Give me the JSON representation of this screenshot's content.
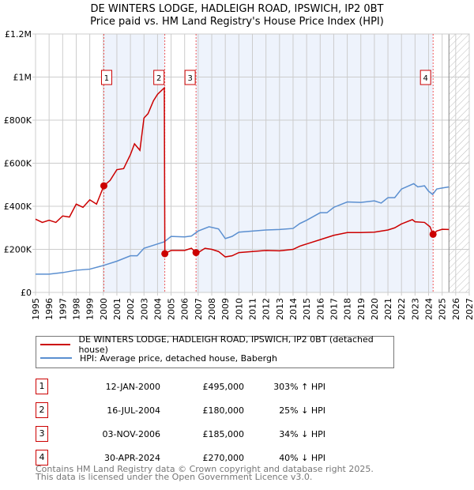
{
  "title": "DE WINTERS LODGE, HADLEIGH ROAD, IPSWICH, IP2 0BT",
  "subtitle": "Price paid vs. HM Land Registry's House Price Index (HPI)",
  "colors": {
    "property": "#cc0000",
    "hpi": "#5b8fd0",
    "shade": "#eef3fc"
  },
  "chart_data": {
    "type": "line",
    "xlim": [
      1995,
      2027
    ],
    "ylim": [
      0,
      1200000
    ],
    "yticks": [
      {
        "v": 0,
        "label": "£0"
      },
      {
        "v": 200000,
        "label": "£200K"
      },
      {
        "v": 400000,
        "label": "£400K"
      },
      {
        "v": 600000,
        "label": "£600K"
      },
      {
        "v": 800000,
        "label": "£800K"
      },
      {
        "v": 1000000,
        "label": "£1M"
      },
      {
        "v": 1200000,
        "label": "£1.2M"
      }
    ],
    "xticks": [
      "1995",
      "1996",
      "1997",
      "1998",
      "1999",
      "2000",
      "2001",
      "2002",
      "2003",
      "2004",
      "2005",
      "2006",
      "2007",
      "2008",
      "2009",
      "2010",
      "2011",
      "2012",
      "2013",
      "2014",
      "2015",
      "2016",
      "2017",
      "2018",
      "2019",
      "2020",
      "2021",
      "2022",
      "2023",
      "2024",
      "2025",
      "2026",
      "2027"
    ],
    "forecast_start": 2025.5,
    "series": [
      {
        "name": "DE WINTERS LODGE, HADLEIGH ROAD, IPSWICH, IP2 0BT (detached house)",
        "color": "#cc0000",
        "x": [
          1995,
          1995.5,
          1996,
          1996.5,
          1997,
          1997.5,
          1998,
          1998.5,
          1999,
          1999.5,
          2000.04,
          2000.5,
          2001,
          2001.5,
          2002,
          2002.3,
          2002.7,
          2003,
          2003.3,
          2003.7,
          2004,
          2004.5,
          2004.54,
          2005,
          2006,
          2006.5,
          2006.84,
          2007,
          2007.5,
          2008,
          2008.5,
          2009,
          2009.5,
          2010,
          2011,
          2012,
          2013,
          2014,
          2014.5,
          2015,
          2016,
          2017,
          2018,
          2019,
          2020,
          2021,
          2021.5,
          2022,
          2022.8,
          2023,
          2023.7,
          2024.1,
          2024.33,
          2024.6,
          2025,
          2025.5
        ],
        "y": [
          340000,
          325000,
          335000,
          325000,
          355000,
          350000,
          410000,
          395000,
          430000,
          410000,
          495000,
          520000,
          570000,
          575000,
          640000,
          690000,
          660000,
          810000,
          830000,
          890000,
          920000,
          950000,
          180000,
          195000,
          195000,
          205000,
          185000,
          185000,
          205000,
          200000,
          190000,
          165000,
          170000,
          185000,
          190000,
          195000,
          193000,
          200000,
          215000,
          225000,
          245000,
          265000,
          278000,
          278000,
          280000,
          290000,
          300000,
          318000,
          338000,
          328000,
          325000,
          305000,
          270000,
          285000,
          293000,
          292000
        ]
      },
      {
        "name": "HPI: Average price, detached house, Babergh",
        "color": "#5b8fd0",
        "x": [
          1995,
          1996,
          1997,
          1998,
          1999,
          2000,
          2001,
          2002,
          2002.5,
          2003,
          2004,
          2004.5,
          2005,
          2006,
          2006.5,
          2007,
          2007.8,
          2008.5,
          2009,
          2009.5,
          2010,
          2011,
          2012,
          2013,
          2014,
          2014.5,
          2015,
          2016,
          2016.5,
          2017,
          2018,
          2019,
          2020,
          2020.5,
          2021,
          2021.5,
          2022,
          2022.9,
          2023.2,
          2023.7,
          2024,
          2024.3,
          2024.6,
          2025,
          2025.5
        ],
        "y": [
          85000,
          85000,
          92000,
          103000,
          108000,
          125000,
          145000,
          170000,
          170000,
          205000,
          225000,
          235000,
          260000,
          258000,
          262000,
          285000,
          305000,
          295000,
          250000,
          260000,
          280000,
          285000,
          290000,
          292000,
          297000,
          320000,
          335000,
          370000,
          370000,
          395000,
          420000,
          418000,
          425000,
          415000,
          440000,
          440000,
          480000,
          505000,
          490000,
          495000,
          470000,
          455000,
          480000,
          485000,
          490000
        ]
      }
    ],
    "sales": [
      {
        "n": "1",
        "x": 2000.04,
        "y": 495000,
        "date": "12-JAN-2000",
        "price": "£495,000",
        "hpi": "303% ↑ HPI"
      },
      {
        "n": "2",
        "x": 2004.54,
        "y": 180000,
        "date": "16-JUL-2004",
        "price": "£180,000",
        "hpi": "25% ↓ HPI"
      },
      {
        "n": "3",
        "x": 2006.84,
        "y": 185000,
        "date": "03-NOV-2006",
        "price": "£185,000",
        "hpi": "34% ↓ HPI"
      },
      {
        "n": "4",
        "x": 2024.33,
        "y": 270000,
        "date": "30-APR-2024",
        "price": "£270,000",
        "hpi": "40% ↓ HPI"
      }
    ]
  },
  "legend": {
    "property": "DE WINTERS LODGE, HADLEIGH ROAD, IPSWICH, IP2 0BT (detached house)",
    "hpi": "HPI: Average price, detached house, Babergh"
  },
  "footer": {
    "line1": "Contains HM Land Registry data © Crown copyright and database right 2025.",
    "line2": "This data is licensed under the Open Government Licence v3.0."
  }
}
